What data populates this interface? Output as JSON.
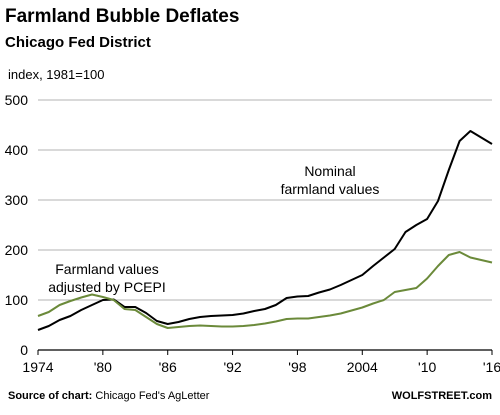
{
  "header": {
    "title": "Farmland Bubble Deflates",
    "subtitle": "Chicago Fed District"
  },
  "footer": {
    "source_label": "Source of chart:",
    "source_value": "Chicago Fed's AgLetter",
    "brand": "WOLFSTREET.com"
  },
  "chart_data": {
    "type": "line",
    "title": "Farmland Bubble Deflates",
    "subtitle": "Chicago Fed District",
    "ylabel": "index, 1981=100",
    "xlabel": "",
    "ylim": [
      0,
      500
    ],
    "xlim": [
      1974,
      2016
    ],
    "yticks": [
      0,
      100,
      200,
      300,
      400,
      500
    ],
    "xticks": [
      1974,
      1980,
      1986,
      1992,
      1998,
      2004,
      2010,
      2016
    ],
    "xtick_labels": [
      "1974",
      "'80",
      "'86",
      "'92",
      "'98",
      "2004",
      "'10",
      "'16"
    ],
    "grid": true,
    "series": [
      {
        "name": "Nominal farmland values",
        "color": "#000000",
        "x": [
          1974,
          1975,
          1976,
          1977,
          1978,
          1979,
          1980,
          1981,
          1982,
          1983,
          1984,
          1985,
          1986,
          1987,
          1988,
          1989,
          1990,
          1991,
          1992,
          1993,
          1994,
          1995,
          1996,
          1997,
          1998,
          1999,
          2000,
          2001,
          2002,
          2003,
          2004,
          2005,
          2006,
          2007,
          2008,
          2009,
          2010,
          2011,
          2012,
          2013,
          2014,
          2015,
          2016
        ],
        "y": [
          40,
          48,
          60,
          68,
          80,
          90,
          100,
          101,
          86,
          86,
          74,
          58,
          52,
          56,
          62,
          66,
          68,
          69,
          70,
          73,
          78,
          82,
          90,
          104,
          107,
          108,
          115,
          121,
          130,
          140,
          150,
          168,
          185,
          202,
          236,
          250,
          262,
          298,
          360,
          418,
          438,
          425,
          412
        ]
      },
      {
        "name": "Farmland values adjusted by PCEPI",
        "color": "#6b8a3a",
        "x": [
          1974,
          1975,
          1976,
          1977,
          1978,
          1979,
          1980,
          1981,
          1982,
          1983,
          1984,
          1985,
          1986,
          1987,
          1988,
          1989,
          1990,
          1991,
          1992,
          1993,
          1994,
          1995,
          1996,
          1997,
          1998,
          1999,
          2000,
          2001,
          2002,
          2003,
          2004,
          2005,
          2006,
          2007,
          2008,
          2009,
          2010,
          2011,
          2012,
          2013,
          2014,
          2015,
          2016
        ],
        "y": [
          68,
          76,
          90,
          98,
          105,
          111,
          106,
          100,
          82,
          80,
          66,
          52,
          44,
          46,
          48,
          49,
          48,
          47,
          47,
          48,
          50,
          53,
          57,
          62,
          63,
          63,
          66,
          69,
          73,
          79,
          85,
          93,
          100,
          116,
          120,
          124,
          143,
          168,
          190,
          196,
          185,
          180,
          175
        ]
      }
    ],
    "annotations": [
      {
        "lines": [
          "Nominal",
          "farmland values"
        ]
      },
      {
        "lines": [
          "Farmland values",
          "adjusted by PCEPI"
        ]
      }
    ]
  }
}
